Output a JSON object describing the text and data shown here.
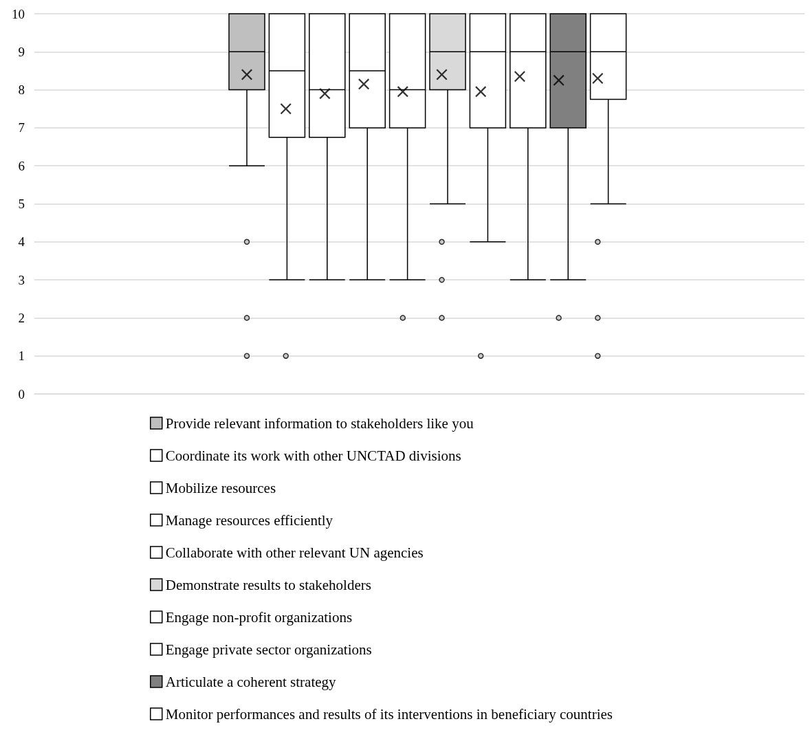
{
  "chart_data": {
    "type": "box",
    "categories": [
      null
    ],
    "ylim": [
      0,
      10
    ],
    "yticks": [
      0,
      1,
      2,
      3,
      4,
      5,
      6,
      7,
      8,
      9,
      10
    ],
    "grid": "y",
    "legend": "bottom",
    "tick_labels": "y",
    "series": [
      {
        "name": "Provide relevant information to stakeholders like you",
        "color": "#bfbfbf",
        "boxes": [
          {
            "low": 6,
            "q1": 8,
            "median": 9,
            "q3": 10,
            "high": 10,
            "mean": 8.4,
            "outliers": [
              4,
              2,
              1
            ]
          }
        ]
      },
      {
        "name": "Coordinate its work with other UNCTAD divisions",
        "color": "#ffffff",
        "boxes": [
          {
            "low": 3,
            "q1": 6.75,
            "median": 8.5,
            "q3": 10,
            "high": 10,
            "mean": 7.5,
            "outliers": [
              1
            ]
          }
        ]
      },
      {
        "name": "Mobilize resources",
        "color": "#ffffff",
        "boxes": [
          {
            "low": 3,
            "q1": 6.75,
            "median": 8,
            "q3": 10,
            "high": 10,
            "mean": 7.9
          }
        ]
      },
      {
        "name": "Manage resources efficiently",
        "color": "#ffffff",
        "boxes": [
          {
            "low": 3,
            "q1": 7,
            "median": 8.5,
            "q3": 10,
            "high": 10,
            "mean": 8.15
          }
        ]
      },
      {
        "name": "Collaborate with other relevant UN agencies",
        "color": "#ffffff",
        "boxes": [
          {
            "low": 3,
            "q1": 7,
            "median": 8,
            "q3": 10,
            "high": 10,
            "mean": 7.95,
            "outliers": [
              2
            ]
          }
        ]
      },
      {
        "name": "Demonstrate results to stakeholders",
        "color": "#d9d9d9",
        "boxes": [
          {
            "low": 5,
            "q1": 8,
            "median": 9,
            "q3": 10,
            "high": 10,
            "mean": 8.4,
            "outliers": [
              4,
              3,
              2
            ]
          }
        ]
      },
      {
        "name": "Engage non-profit organizations",
        "color": "#ffffff",
        "boxes": [
          {
            "low": 4,
            "q1": 7,
            "median": 9,
            "q3": 10,
            "high": 10,
            "mean": 7.95,
            "outliers": [
              1
            ]
          }
        ]
      },
      {
        "name": "Engage private sector organizations",
        "color": "#ffffff",
        "boxes": [
          {
            "low": 3,
            "q1": 7,
            "median": 9,
            "q3": 10,
            "high": 10,
            "mean": 8.35
          }
        ]
      },
      {
        "name": "Articulate a coherent strategy",
        "color": "#808080",
        "boxes": [
          {
            "low": 3,
            "q1": 7,
            "median": 9,
            "q3": 10,
            "high": 10,
            "mean": 8.25,
            "outliers": [
              2
            ]
          }
        ]
      },
      {
        "name": "Monitor performances and results of its interventions in beneficiary countries",
        "color": "#ffffff",
        "boxes": [
          {
            "low": 5,
            "q1": 7.75,
            "median": 9,
            "q3": 10,
            "high": 10,
            "mean": 8.3,
            "outliers": [
              4,
              2,
              1
            ]
          }
        ]
      }
    ]
  }
}
